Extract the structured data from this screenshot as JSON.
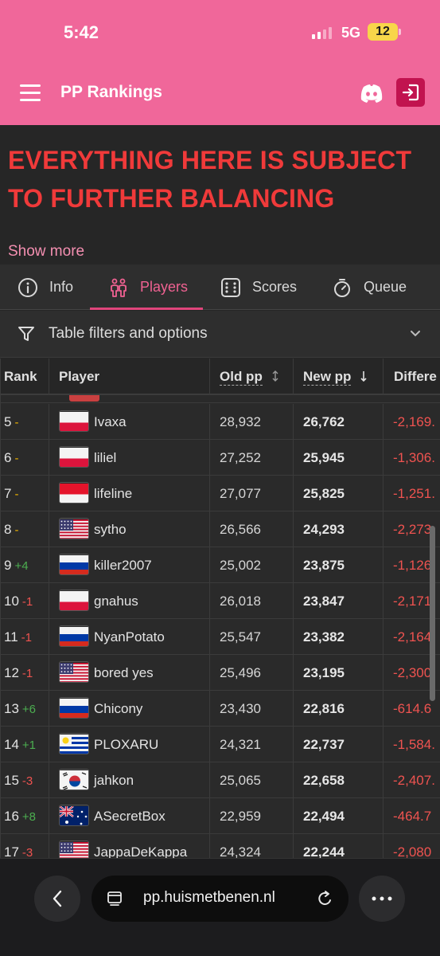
{
  "status_bar": {
    "time": "5:42",
    "network": "5G",
    "battery": "12"
  },
  "header": {
    "title": "PP Rankings",
    "accent": "#f0679a"
  },
  "warning": {
    "line1": "EVERYTHING HERE IS SUBJECT",
    "line2": "TO FURTHER BALANCING",
    "color": "#f03a3a"
  },
  "show_more": "Show more",
  "tabs": [
    {
      "label": "Info",
      "icon": "info-icon"
    },
    {
      "label": "Players",
      "icon": "players-icon",
      "active": true
    },
    {
      "label": "Scores",
      "icon": "dice-icon"
    },
    {
      "label": "Queue",
      "icon": "stopwatch-icon"
    }
  ],
  "filters": {
    "label": "Table filters and options"
  },
  "table": {
    "headers": {
      "rank": "Rank",
      "player": "Player",
      "old_pp": "Old pp",
      "new_pp": "New pp",
      "difference": "Differe"
    },
    "rows": [
      {
        "rank": "5",
        "delta": "-",
        "delta_type": "same",
        "flag": "pl",
        "player": "Ivaxa",
        "old_pp": "28,932",
        "new_pp": "26,762",
        "diff": "-2,169."
      },
      {
        "rank": "6",
        "delta": "-",
        "delta_type": "same",
        "flag": "pl",
        "player": "liliel",
        "old_pp": "27,252",
        "new_pp": "25,945",
        "diff": "-1,306."
      },
      {
        "rank": "7",
        "delta": "-",
        "delta_type": "same",
        "flag": "id",
        "player": "lifeline",
        "old_pp": "27,077",
        "new_pp": "25,825",
        "diff": "-1,251."
      },
      {
        "rank": "8",
        "delta": "-",
        "delta_type": "same",
        "flag": "us",
        "player": "sytho",
        "old_pp": "26,566",
        "new_pp": "24,293",
        "diff": "-2,273."
      },
      {
        "rank": "9",
        "delta": "+4",
        "delta_type": "up",
        "flag": "ru",
        "player": "killer2007",
        "old_pp": "25,002",
        "new_pp": "23,875",
        "diff": "-1,126."
      },
      {
        "rank": "10",
        "delta": "-1",
        "delta_type": "down",
        "flag": "pl",
        "player": "gnahus",
        "old_pp": "26,018",
        "new_pp": "23,847",
        "diff": "-2,171"
      },
      {
        "rank": "11",
        "delta": "-1",
        "delta_type": "down",
        "flag": "ru",
        "player": "NyanPotato",
        "old_pp": "25,547",
        "new_pp": "23,382",
        "diff": "-2,164."
      },
      {
        "rank": "12",
        "delta": "-1",
        "delta_type": "down",
        "flag": "us",
        "player": "bored yes",
        "old_pp": "25,496",
        "new_pp": "23,195",
        "diff": "-2,300."
      },
      {
        "rank": "13",
        "delta": "+6",
        "delta_type": "up",
        "flag": "ru",
        "player": "Chicony",
        "old_pp": "23,430",
        "new_pp": "22,816",
        "diff": "-614.6"
      },
      {
        "rank": "14",
        "delta": "+1",
        "delta_type": "up",
        "flag": "uy",
        "player": "PLOXARU",
        "old_pp": "24,321",
        "new_pp": "22,737",
        "diff": "-1,584."
      },
      {
        "rank": "15",
        "delta": "-3",
        "delta_type": "down",
        "flag": "kr",
        "player": "jahkon",
        "old_pp": "25,065",
        "new_pp": "22,658",
        "diff": "-2,407."
      },
      {
        "rank": "16",
        "delta": "+8",
        "delta_type": "up",
        "flag": "au",
        "player": "ASecretBox",
        "old_pp": "22,959",
        "new_pp": "22,494",
        "diff": "-464.7"
      },
      {
        "rank": "17",
        "delta": "-3",
        "delta_type": "down",
        "flag": "us",
        "player": "JappaDeKappa",
        "old_pp": "24,324",
        "new_pp": "22,244",
        "diff": "-2,080"
      }
    ]
  },
  "browser": {
    "url": "pp.huismetbenen.nl"
  }
}
